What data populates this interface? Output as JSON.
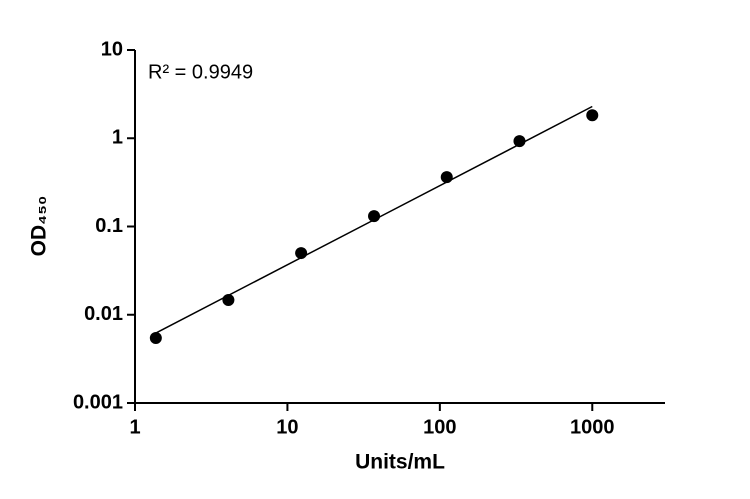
{
  "chart_data": {
    "type": "scatter",
    "x_label": "Units/mL",
    "y_label": "OD₄₅₀",
    "annotation": "R² = 0.9949",
    "xscale": "log",
    "yscale": "log",
    "xlim": [
      1,
      3000
    ],
    "ylim": [
      0.001,
      10
    ],
    "xticks": [
      1,
      10,
      100,
      1000
    ],
    "yticks": [
      0.001,
      0.01,
      0.1,
      1,
      10
    ],
    "series": [
      {
        "color": "#000000",
        "x": [
          1.37,
          4.1,
          12.3,
          37,
          111,
          333,
          1000
        ],
        "values": [
          0.00545,
          0.0147,
          0.05,
          0.131,
          0.363,
          0.927,
          1.82
        ]
      }
    ],
    "fit": {
      "color": "#000000",
      "x": [
        1.37,
        1000
      ],
      "values": [
        0.0062,
        2.29
      ]
    }
  }
}
